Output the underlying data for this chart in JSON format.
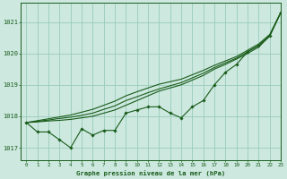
{
  "title": "Graphe pression niveau de la mer (hPa)",
  "bg_color": "#cce8df",
  "grid_color": "#99ccbb",
  "line_color": "#1a5c1a",
  "xlim": [
    -0.5,
    23
  ],
  "ylim": [
    1016.6,
    1021.6
  ],
  "yticks": [
    1017,
    1018,
    1019,
    1020,
    1021
  ],
  "xticks": [
    0,
    1,
    2,
    3,
    4,
    5,
    6,
    7,
    8,
    9,
    10,
    11,
    12,
    13,
    14,
    15,
    16,
    17,
    18,
    19,
    20,
    21,
    22,
    23
  ],
  "series_main": [
    1017.8,
    1017.5,
    1017.5,
    1017.25,
    1017.0,
    1017.6,
    1017.4,
    1017.55,
    1017.55,
    1018.1,
    1018.2,
    1018.3,
    1018.3,
    1018.1,
    1017.95,
    1018.3,
    1018.5,
    1019.0,
    1019.4,
    1019.65,
    1020.05,
    1020.25,
    1020.55,
    1021.3
  ],
  "series_line1": [
    1017.8,
    1017.82,
    1017.85,
    1017.87,
    1017.9,
    1017.95,
    1018.0,
    1018.1,
    1018.2,
    1018.35,
    1018.5,
    1018.65,
    1018.8,
    1018.9,
    1019.0,
    1019.15,
    1019.3,
    1019.5,
    1019.65,
    1019.82,
    1020.0,
    1020.2,
    1020.55,
    1021.3
  ],
  "series_line2": [
    1017.8,
    1017.84,
    1017.88,
    1017.93,
    1017.97,
    1018.03,
    1018.1,
    1018.22,
    1018.33,
    1018.5,
    1018.62,
    1018.75,
    1018.87,
    1018.97,
    1019.07,
    1019.22,
    1019.37,
    1019.55,
    1019.7,
    1019.85,
    1020.05,
    1020.25,
    1020.57,
    1021.3
  ],
  "series_line3": [
    1017.8,
    1017.86,
    1017.92,
    1017.98,
    1018.04,
    1018.13,
    1018.22,
    1018.35,
    1018.48,
    1018.65,
    1018.78,
    1018.9,
    1019.02,
    1019.1,
    1019.18,
    1019.32,
    1019.46,
    1019.62,
    1019.76,
    1019.9,
    1020.1,
    1020.3,
    1020.6,
    1021.3
  ]
}
